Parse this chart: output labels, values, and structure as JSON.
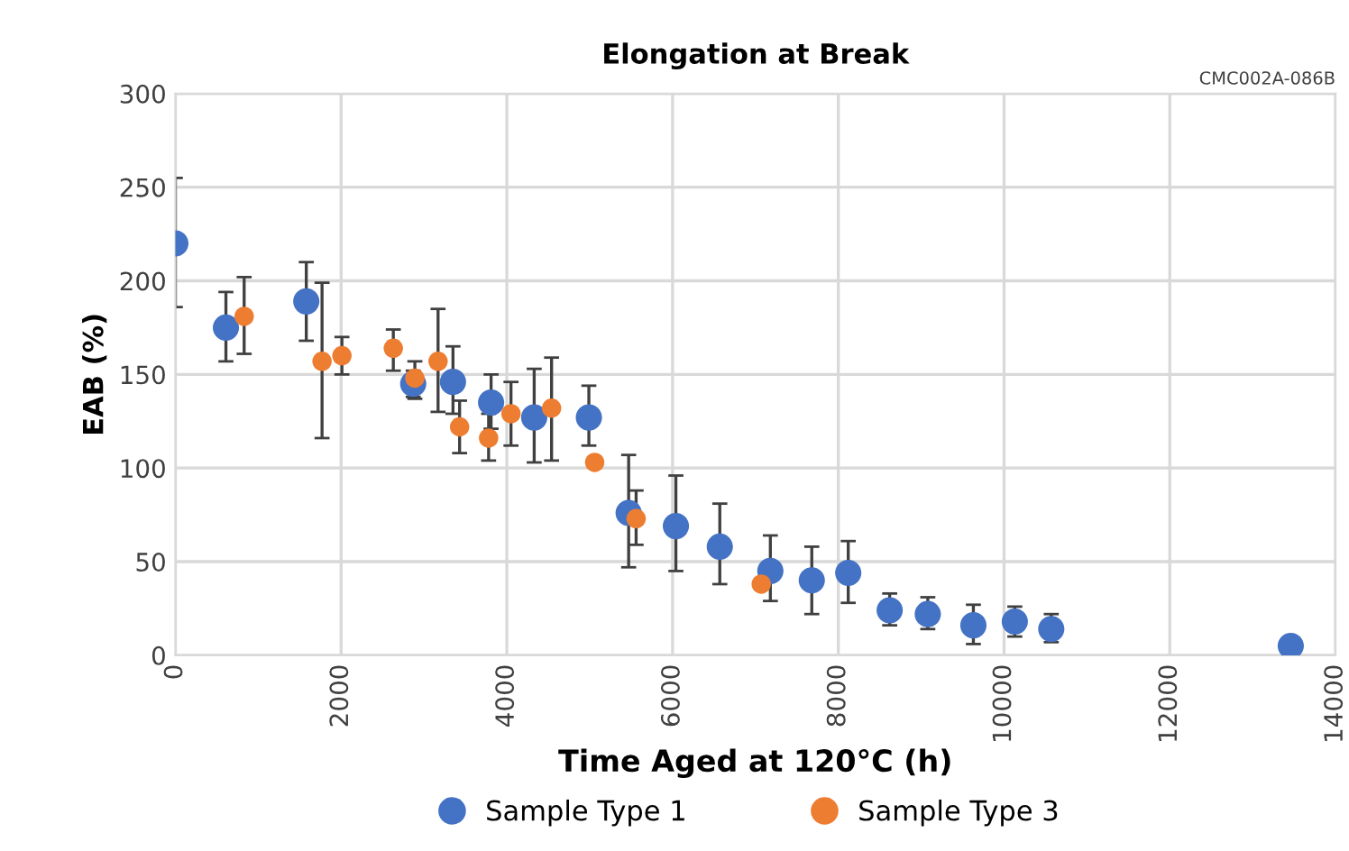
{
  "chart_data": {
    "type": "scatter",
    "title": "Elongation at Break",
    "xlabel": "Time Aged at 120°C (h)",
    "ylabel": "EAB (%)",
    "annotations": [
      "CMC002A-086B"
    ],
    "xlim": [
      0,
      14000
    ],
    "xticks": [
      0,
      2000,
      4000,
      6000,
      8000,
      10000,
      12000,
      14000
    ],
    "ylim": [
      0,
      300
    ],
    "yticks": [
      0,
      50,
      100,
      150,
      200,
      250,
      300
    ],
    "grid": true,
    "legend": "bottom",
    "marker": "circle",
    "series": [
      {
        "name": "Sample Type 1",
        "color": "#4472c4",
        "x": [
          0,
          610,
          1580,
          2870,
          3350,
          3810,
          4330,
          4990,
          5470,
          6040,
          6570,
          7180,
          7680,
          8120,
          8620,
          9080,
          9630,
          10130,
          10570,
          13460
        ],
        "values": [
          220,
          175,
          189,
          145,
          146,
          135,
          127,
          127,
          76,
          69,
          58,
          45,
          40,
          44,
          24,
          22,
          16,
          18,
          14,
          5
        ],
        "errors": [
          [
            186,
            255
          ],
          [
            157,
            194
          ],
          [
            168,
            210
          ],
          [
            138,
            152
          ],
          [
            129,
            165
          ],
          [
            121,
            150
          ],
          [
            103,
            153
          ],
          [
            112,
            144
          ],
          [
            47,
            107
          ],
          [
            45,
            96
          ],
          [
            38,
            81
          ],
          [
            29,
            64
          ],
          [
            22,
            58
          ],
          [
            28,
            61
          ],
          [
            16,
            33
          ],
          [
            14,
            31
          ],
          [
            6,
            27
          ],
          [
            10,
            26
          ],
          [
            7,
            22
          ],
          null
        ]
      },
      {
        "name": "Sample Type 3",
        "color": "#ed7d31",
        "x": [
          830,
          1770,
          2010,
          2630,
          2890,
          3170,
          3430,
          3780,
          4050,
          4540,
          5060,
          5560,
          7070
        ],
        "values": [
          181,
          157,
          160,
          164,
          148,
          157,
          122,
          116,
          129,
          132,
          103,
          73,
          38
        ],
        "errors": [
          [
            161,
            202
          ],
          [
            116,
            199
          ],
          [
            150,
            170
          ],
          [
            152,
            174
          ],
          [
            137,
            157
          ],
          [
            130,
            185
          ],
          [
            108,
            136
          ],
          [
            104,
            129
          ],
          [
            112,
            146
          ],
          [
            104,
            159
          ],
          null,
          [
            59,
            88
          ],
          null
        ]
      }
    ]
  }
}
